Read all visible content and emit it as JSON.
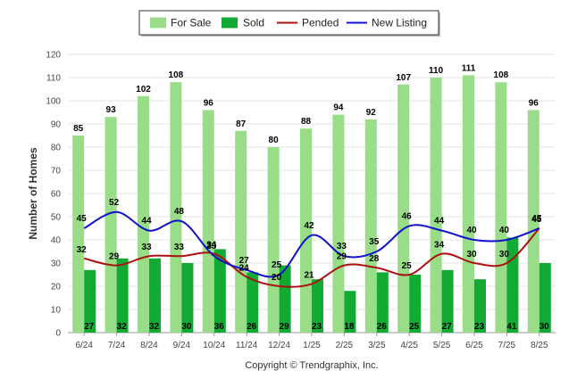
{
  "chart_data": {
    "type": "bar",
    "title": "",
    "xlabel": "",
    "ylabel": "Number of Homes",
    "ylim": [
      0,
      120
    ],
    "yticks": [
      0,
      10,
      20,
      30,
      40,
      50,
      60,
      70,
      80,
      90,
      100,
      110,
      120
    ],
    "grid": true,
    "legend_position": "top-center",
    "categories": [
      "6/24",
      "7/24",
      "8/24",
      "9/24",
      "10/24",
      "11/24",
      "12/24",
      "1/25",
      "2/25",
      "3/25",
      "4/25",
      "5/25",
      "6/25",
      "7/25",
      "8/25"
    ],
    "series": [
      {
        "name": "For Sale",
        "type": "bar",
        "color": "#99dd88",
        "values": [
          85,
          93,
          102,
          108,
          96,
          87,
          80,
          88,
          94,
          92,
          107,
          110,
          111,
          108,
          96
        ]
      },
      {
        "name": "Sold",
        "type": "bar",
        "color": "#11aa33",
        "values": [
          27,
          32,
          32,
          30,
          36,
          26,
          29,
          23,
          18,
          26,
          25,
          27,
          23,
          41,
          30
        ]
      },
      {
        "name": "Pended",
        "type": "line",
        "color": "#aa1111",
        "values": [
          32,
          29,
          33,
          33,
          34,
          24,
          20,
          21,
          29,
          28,
          25,
          34,
          30,
          30,
          45
        ]
      },
      {
        "name": "New Listing",
        "type": "line",
        "color": "#1111cc",
        "values": [
          45,
          52,
          44,
          48,
          33,
          27,
          25,
          42,
          33,
          35,
          46,
          44,
          40,
          40,
          45
        ]
      }
    ]
  },
  "footer": {
    "copyright": "Copyright © Trendgraphix, Inc."
  },
  "colors": {
    "grid": "#e6e6e6",
    "axis": "#999999",
    "legend_border": "#333333"
  }
}
